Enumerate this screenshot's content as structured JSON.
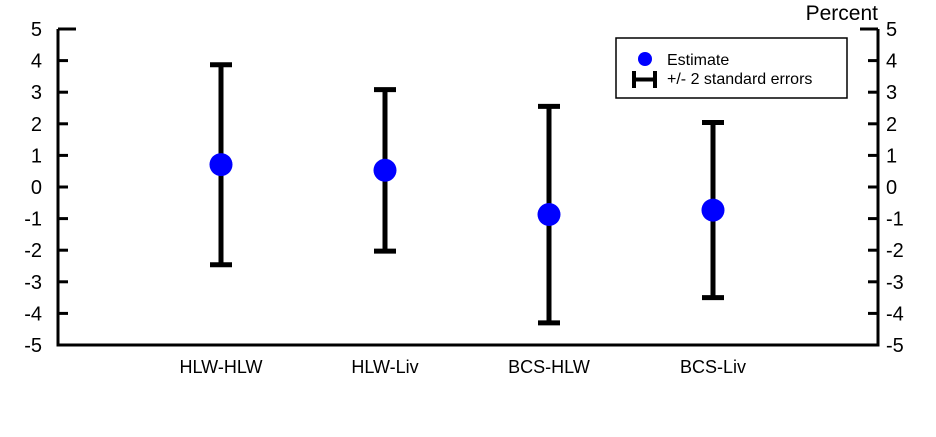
{
  "chart_data": {
    "type": "errorbar",
    "unit_label": "Percent",
    "categories": [
      "HLW-HLW",
      "HLW-Liv",
      "BCS-HLW",
      "BCS-Liv"
    ],
    "estimate": [
      0.71,
      0.53,
      -0.87,
      -0.73
    ],
    "upper": [
      3.87,
      3.08,
      2.55,
      2.04
    ],
    "lower": [
      -2.46,
      -2.03,
      -4.3,
      -3.5
    ],
    "ylim": [
      -5,
      5
    ],
    "yticks": [
      "5",
      "4",
      "3",
      "2",
      "1",
      "0",
      "-1",
      "-2",
      "-3",
      "-4",
      "-5"
    ],
    "ytick_values": [
      5,
      4,
      3,
      2,
      1,
      0,
      -1,
      -2,
      -3,
      -4,
      -5
    ],
    "grid": false,
    "legend": {
      "placement": "top-right",
      "entries": [
        "Estimate",
        "+/- 2 standard errors"
      ]
    },
    "colors": {
      "estimate": "#0000ff",
      "errorbar": "#000000"
    }
  }
}
